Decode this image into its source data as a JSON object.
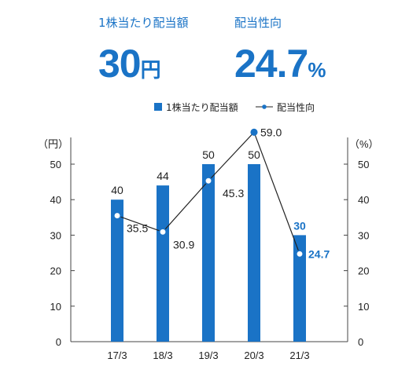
{
  "kpis": {
    "dividend_label": "1株当たり配当額",
    "dividend_value": "30",
    "dividend_unit": "円",
    "payout_label": "配当性向",
    "payout_value": "24.7",
    "payout_unit": "%"
  },
  "colors": {
    "accent": "#1a73c6",
    "line": "#222222",
    "axis": "#444444"
  },
  "chart_data": {
    "type": "bar",
    "categories": [
      "17/3",
      "18/3",
      "19/3",
      "20/3",
      "21/3"
    ],
    "series": [
      {
        "name": "1株当たり配当額",
        "type": "bar",
        "axis": "left",
        "values": [
          40,
          44,
          50,
          50,
          30
        ]
      },
      {
        "name": "配当性向",
        "type": "line",
        "axis": "right",
        "values": [
          35.5,
          30.9,
          45.3,
          59.0,
          24.7
        ]
      }
    ],
    "bar_labels": [
      "40",
      "44",
      "50",
      "50",
      "30"
    ],
    "line_labels": [
      "35.5",
      "30.9",
      "45.3",
      "59.0",
      "24.7"
    ],
    "ylabel_left": "（円）",
    "ylabel_right": "（%）",
    "ylim_left": [
      0,
      50
    ],
    "ylim_right": [
      0,
      50
    ],
    "yticks_left": [
      "0",
      "10",
      "20",
      "30",
      "40",
      "50"
    ],
    "yticks_right": [
      "0",
      "10",
      "20",
      "30",
      "40",
      "50"
    ],
    "highlight_index": 4,
    "legend": {
      "position": "top",
      "entries": [
        "1株当たり配当額",
        "配当性向"
      ]
    },
    "grid": false
  }
}
